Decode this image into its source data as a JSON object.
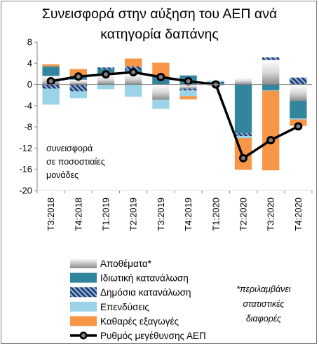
{
  "chart_data": {
    "type": "bar",
    "title_lines": [
      "Συνεισφορά στην αύξηση του ΑΕΠ ανά",
      "κατηγορία δαπάνης"
    ],
    "categories": [
      "Τ3:2018",
      "Τ4:2018",
      "Τ1:2019",
      "Τ2:2019",
      "Τ3:2019",
      "Τ4:2019",
      "Τ1:2020",
      "Τ2:2020",
      "Τ3:2020",
      "Τ4:2020"
    ],
    "ylim": [
      -20,
      8
    ],
    "yticks": [
      -20,
      -16,
      -12,
      -8,
      -4,
      0,
      4,
      8
    ],
    "annotation_lines": [
      "συνεισφορά",
      "σε ποσοστιαίες",
      "μονάδες"
    ],
    "series": [
      {
        "name": "Αποθέματα*",
        "key": "inventories",
        "values": [
          1.6,
          0.9,
          1.8,
          2.1,
          -2.9,
          -0.8,
          -0.2,
          1.3,
          4.6,
          -3.1
        ]
      },
      {
        "name": "Ιδιωτική κατανάλωση",
        "key": "private",
        "values": [
          1.8,
          0.7,
          1.1,
          0.6,
          1.4,
          1.7,
          0.3,
          -9.2,
          -1.1,
          -3.3
        ]
      },
      {
        "name": "Δημόσια κατανάλωση",
        "key": "public",
        "values": [
          -0.8,
          -1.3,
          0.3,
          0.7,
          0.1,
          -0.3,
          0.2,
          -0.5,
          0.5,
          1.3
        ]
      },
      {
        "name": "Επενδύσεις",
        "key": "investment",
        "values": [
          -3.0,
          -1.3,
          -0.9,
          -2.3,
          -1.7,
          -1.1,
          0.2,
          -0.4,
          -0.1,
          -0.2
        ]
      },
      {
        "name": "Καθαρές εξαγωγές",
        "key": "netexports",
        "values": [
          0.4,
          1.3,
          0.0,
          1.5,
          2.6,
          -0.6,
          0.0,
          -6.0,
          -15.0,
          -1.2
        ]
      },
      {
        "name": "Ρυθμός μεγέθυνσης ΑΕΠ",
        "key": "gdp",
        "type": "line",
        "values": [
          0.6,
          1.5,
          1.9,
          2.3,
          1.4,
          0.6,
          0.0,
          -13.9,
          -10.5,
          -7.9
        ]
      }
    ],
    "colors": {
      "inventories_light": "#f2f2f2",
      "inventories_dark": "#a6a6a6",
      "private": "#31859c",
      "public_dark": "#1f3864",
      "public_light": "#8eb4e3",
      "investment": "#9bd3e8",
      "netexports": "#f79646",
      "gdp": "#000000",
      "gdp_marker": "#7f7f7f"
    },
    "footnote_lines": [
      "*περιλαμβάνει",
      "στατιστικές",
      "διαφορές"
    ]
  }
}
